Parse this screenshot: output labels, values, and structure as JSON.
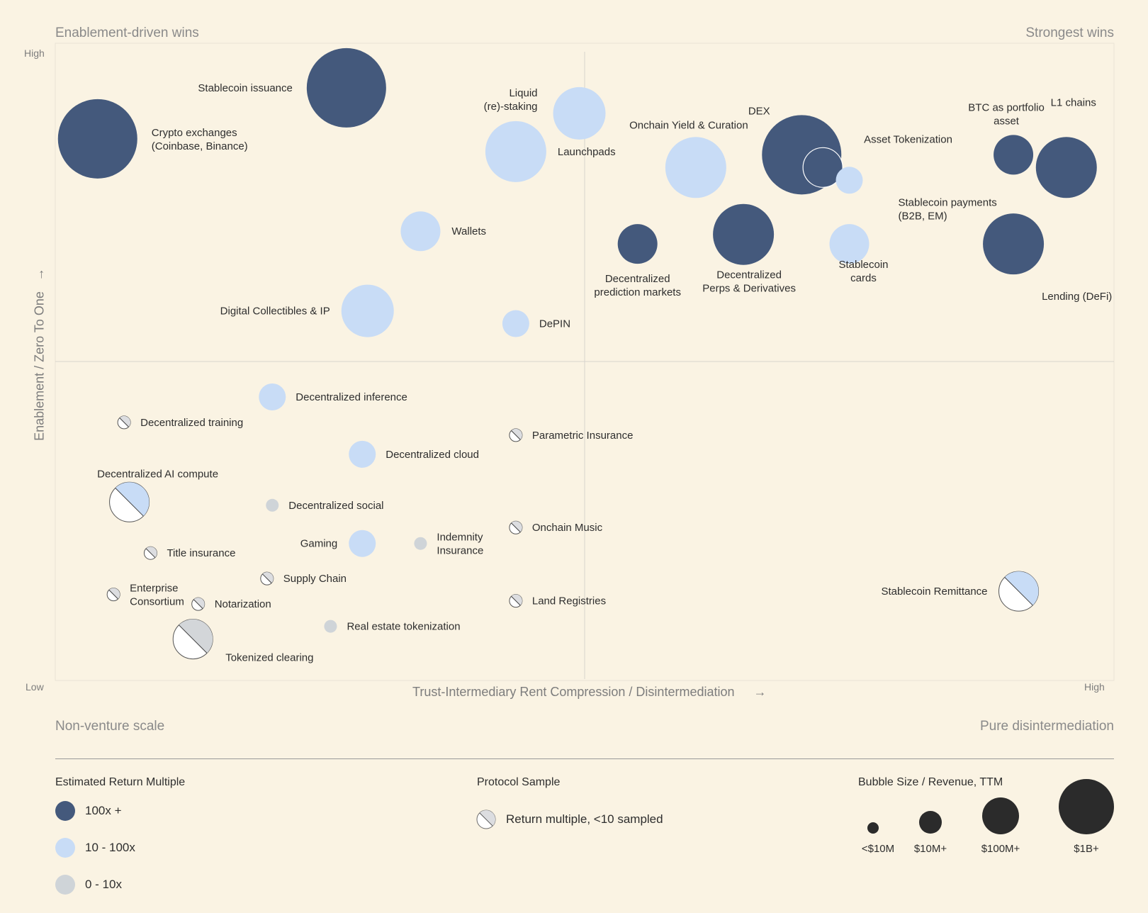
{
  "corner_labels": {
    "top_left": "Enablement-driven wins",
    "top_right": "Strongest wins",
    "bottom_left": "Non-venture scale",
    "bottom_right": "Pure disintermediation"
  },
  "colors": {
    "background": "#faf3e3",
    "tier_100x": "#44597c",
    "tier_10_100x": "#c8dcf6",
    "tier_0_10x": "#cfd4d8",
    "size_legend": "#2b2b2b"
  },
  "chart_data": {
    "type": "scatter",
    "xlabel": "Trust-Intermediary Rent Compression / Disintermediation",
    "ylabel": "Enablement / Zero To One",
    "x_ticks": {
      "low": "Low",
      "high": "High"
    },
    "y_ticks": {
      "low": "Low",
      "high": "High"
    },
    "xlim": [
      0,
      100
    ],
    "ylim": [
      0,
      100
    ],
    "grid": "quadrant dividers at midpoint",
    "points": [
      {
        "label": "Crypto exchanges\n(Coinbase, Binance)",
        "x": 4,
        "y": 85,
        "tier": "100x",
        "size": "1B",
        "sampled": false
      },
      {
        "label": "Stablecoin issuance",
        "x": 27.5,
        "y": 93,
        "tier": "100x",
        "size": "1B",
        "sampled": false
      },
      {
        "label": "Liquid\n(re)-staking",
        "x": 49.5,
        "y": 89,
        "tier": "10-100x",
        "size": "100M",
        "sampled": false
      },
      {
        "label": "Launchpads",
        "x": 43.5,
        "y": 83,
        "tier": "10-100x",
        "size": "100M+",
        "sampled": false
      },
      {
        "label": "Onchain Yield & Curation",
        "x": 60.5,
        "y": 80.5,
        "tier": "10-100x",
        "size": "100M+",
        "sampled": false
      },
      {
        "label": "DEX",
        "x": 70.5,
        "y": 82.5,
        "tier": "100x",
        "size": "1B",
        "sampled": false
      },
      {
        "label": "Asset Tokenization",
        "x": 72.5,
        "y": 80.5,
        "tier": "100x",
        "size": "10M+",
        "sampled": false
      },
      {
        "label": "Stablecoin payments\n(B2B, EM)",
        "x": 75,
        "y": 78.5,
        "tier": "10-100x",
        "size": "10M",
        "sampled": false
      },
      {
        "label": "BTC as portfolio\nasset",
        "x": 90.5,
        "y": 82.5,
        "tier": "100x",
        "size": "10M+",
        "sampled": false
      },
      {
        "label": "L1 chains",
        "x": 95.5,
        "y": 80.5,
        "tier": "100x",
        "size": "100M+",
        "sampled": false
      },
      {
        "label": "Wallets",
        "x": 34.5,
        "y": 70.5,
        "tier": "10-100x",
        "size": "10M+",
        "sampled": false
      },
      {
        "label": "Decentralized\nprediction markets",
        "x": 55,
        "y": 68.5,
        "tier": "100x",
        "size": "10M+",
        "sampled": false
      },
      {
        "label": "Decentralized\nPerps & Derivatives",
        "x": 65,
        "y": 70,
        "tier": "100x",
        "size": "100M+",
        "sampled": false
      },
      {
        "label": "Stablecoin\ncards",
        "x": 75,
        "y": 68.5,
        "tier": "10-100x",
        "size": "10M+",
        "sampled": false
      },
      {
        "label": "Lending (DeFi)",
        "x": 90.5,
        "y": 68.5,
        "tier": "100x",
        "size": "100M+",
        "sampled": false
      },
      {
        "label": "Digital Collectibles & IP",
        "x": 29.5,
        "y": 58,
        "tier": "10-100x",
        "size": "100M",
        "sampled": false
      },
      {
        "label": "DePIN",
        "x": 43.5,
        "y": 56,
        "tier": "10-100x",
        "size": "10M",
        "sampled": false
      },
      {
        "label": "Decentralized inference",
        "x": 20.5,
        "y": 44.5,
        "tier": "10-100x",
        "size": "10M",
        "sampled": false
      },
      {
        "label": "Decentralized training",
        "x": 6.5,
        "y": 40.5,
        "tier": "sampled",
        "size": "<10M",
        "sampled": true
      },
      {
        "label": "Parametric Insurance",
        "x": 43.5,
        "y": 38.5,
        "tier": "sampled",
        "size": "<10M",
        "sampled": true
      },
      {
        "label": "Decentralized cloud",
        "x": 29,
        "y": 35.5,
        "tier": "10-100x",
        "size": "10M",
        "sampled": false
      },
      {
        "label": "Decentralized AI compute",
        "x": 7,
        "y": 28,
        "tier": "sampled",
        "size": "10M+",
        "sampled": true
      },
      {
        "label": "Decentralized social",
        "x": 20.5,
        "y": 27.5,
        "tier": "0-10x",
        "size": "<10M",
        "sampled": false
      },
      {
        "label": "Onchain Music",
        "x": 43.5,
        "y": 24,
        "tier": "sampled",
        "size": "<10M",
        "sampled": true
      },
      {
        "label": "Gaming",
        "x": 29,
        "y": 21.5,
        "tier": "10-100x",
        "size": "10M",
        "sampled": false
      },
      {
        "label": "Indemnity\nInsurance",
        "x": 34.5,
        "y": 21.5,
        "tier": "0-10x",
        "size": "<10M",
        "sampled": false
      },
      {
        "label": "Title insurance",
        "x": 9,
        "y": 20,
        "tier": "sampled",
        "size": "<10M",
        "sampled": true
      },
      {
        "label": "Supply Chain",
        "x": 20,
        "y": 16,
        "tier": "sampled",
        "size": "<10M",
        "sampled": true
      },
      {
        "label": "Stablecoin Remittance",
        "x": 91,
        "y": 14,
        "tier": "sampled",
        "size": "10M+",
        "sampled": true
      },
      {
        "label": "Enterprise\nConsortium",
        "x": 5.5,
        "y": 13.5,
        "tier": "sampled",
        "size": "<10M",
        "sampled": true
      },
      {
        "label": "Notarization",
        "x": 13.5,
        "y": 12,
        "tier": "sampled",
        "size": "<10M",
        "sampled": true
      },
      {
        "label": "Land Registries",
        "x": 43.5,
        "y": 12.5,
        "tier": "sampled",
        "size": "<10M",
        "sampled": true
      },
      {
        "label": "Real estate tokenization",
        "x": 26,
        "y": 8.5,
        "tier": "0-10x",
        "size": "<10M",
        "sampled": false
      },
      {
        "label": "Tokenized clearing",
        "x": 13,
        "y": 6.5,
        "tier": "sampled",
        "size": "10M+",
        "sampled": true
      }
    ]
  },
  "legend": {
    "return_title": "Estimated Return Multiple",
    "return_items": [
      {
        "label": "100x +",
        "color": "#44597c"
      },
      {
        "label": "10 - 100x",
        "color": "#c8dcf6"
      },
      {
        "label": "0 - 10x",
        "color": "#cfd4d8"
      }
    ],
    "protocol_title": "Protocol Sample",
    "protocol_item": "Return multiple, <10 sampled",
    "size_title": "Bubble Size / Revenue, TTM",
    "size_items": [
      "<$10M",
      "$10M+",
      "$100M+",
      "$1B+"
    ]
  }
}
